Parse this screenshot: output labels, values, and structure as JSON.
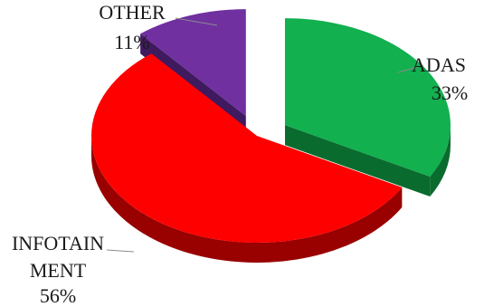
{
  "chart_data": {
    "type": "pie",
    "style": "3d-exploded",
    "title": "",
    "slices": [
      {
        "name": "ADAS",
        "value": 33,
        "percent_label": "33%",
        "label_lines": [
          "ADAS"
        ],
        "color": "#12b04f",
        "side_color": "#0a6b2e"
      },
      {
        "name": "INFOTAINMENT",
        "value": 56,
        "percent_label": "56%",
        "label_lines": [
          "INFOTAIN",
          "MENT"
        ],
        "color": "#ff0000",
        "side_color": "#990000"
      },
      {
        "name": "OTHER",
        "value": 11,
        "percent_label": "11%",
        "label_lines": [
          "OTHER"
        ],
        "color": "#7030a0",
        "side_color": "#3f1a5e"
      }
    ]
  }
}
